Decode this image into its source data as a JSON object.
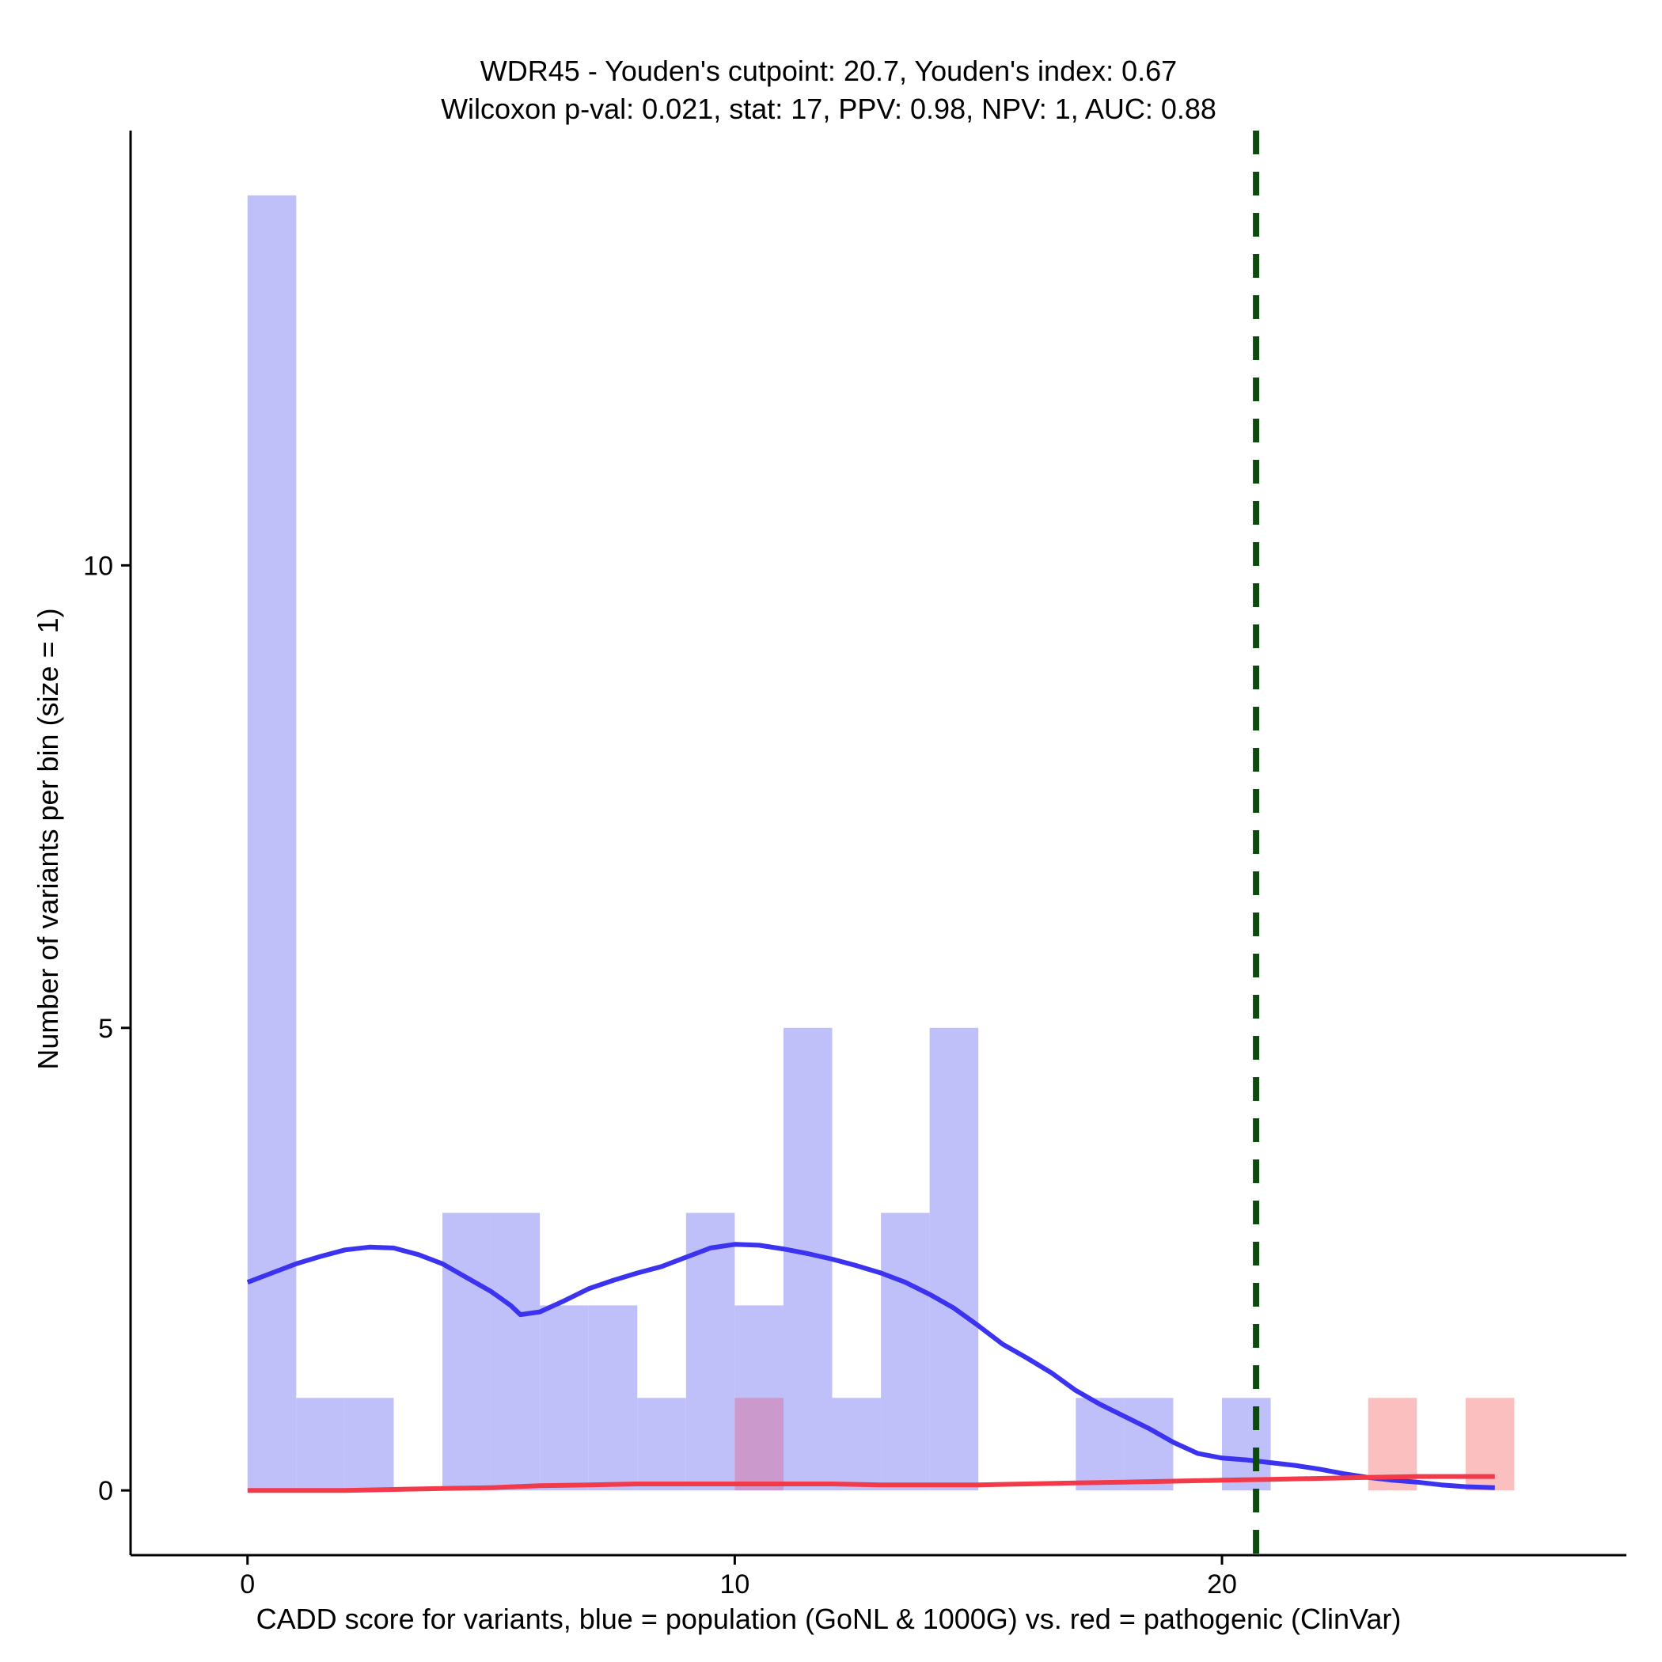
{
  "chart_data": {
    "type": "bar",
    "title_lines": [
      "WDR45 - Youden's cutpoint: 20.7, Youden's index: 0.67",
      "Wilcoxon p-val: 0.021, stat: 17, PPV: 0.98, NPV: 1, AUC: 0.88"
    ],
    "xlabel": "CADD score for variants, blue = population (GoNL & 1000G) vs. red = pathogenic (ClinVar)",
    "ylabel": "Number of variants per bin (size = 1)",
    "xlim": [
      -2.4,
      28.3
    ],
    "ylim": [
      -0.7,
      14.7
    ],
    "xticks": [
      0,
      10,
      20
    ],
    "yticks": [
      0,
      5,
      10
    ],
    "bin_width": 1,
    "cutpoint": 20.7,
    "colors": {
      "population_bar": "#bfbffa",
      "pathogenic_bar": "#fcbfbf",
      "overlap_bar": "#cc99cc",
      "population_line": "#3b33ef",
      "pathogenic_line": "#f23a4a",
      "cutpoint_line": "#0d4a0d"
    },
    "series": [
      {
        "name": "population (GoNL & 1000G)",
        "bins": [
          {
            "x": 0,
            "count": 14
          },
          {
            "x": 1,
            "count": 1
          },
          {
            "x": 2,
            "count": 1
          },
          {
            "x": 4,
            "count": 3
          },
          {
            "x": 5,
            "count": 3
          },
          {
            "x": 6,
            "count": 2
          },
          {
            "x": 7,
            "count": 2
          },
          {
            "x": 8,
            "count": 1
          },
          {
            "x": 9,
            "count": 3
          },
          {
            "x": 10,
            "count": 2
          },
          {
            "x": 11,
            "count": 5
          },
          {
            "x": 12,
            "count": 1
          },
          {
            "x": 13,
            "count": 3
          },
          {
            "x": 14,
            "count": 5
          },
          {
            "x": 17,
            "count": 1
          },
          {
            "x": 18,
            "count": 1
          },
          {
            "x": 20,
            "count": 1
          }
        ],
        "density": [
          [
            0,
            2.25
          ],
          [
            0.5,
            2.35
          ],
          [
            1,
            2.45
          ],
          [
            1.5,
            2.53
          ],
          [
            2,
            2.6
          ],
          [
            2.5,
            2.63
          ],
          [
            3,
            2.62
          ],
          [
            3.5,
            2.55
          ],
          [
            4,
            2.45
          ],
          [
            4.5,
            2.3
          ],
          [
            5,
            2.15
          ],
          [
            5.4,
            2.0
          ],
          [
            5.6,
            1.9
          ],
          [
            6,
            1.93
          ],
          [
            6.5,
            2.05
          ],
          [
            7,
            2.18
          ],
          [
            7.5,
            2.27
          ],
          [
            8,
            2.35
          ],
          [
            8.5,
            2.42
          ],
          [
            9,
            2.52
          ],
          [
            9.5,
            2.62
          ],
          [
            10,
            2.66
          ],
          [
            10.5,
            2.65
          ],
          [
            11,
            2.61
          ],
          [
            11.5,
            2.56
          ],
          [
            12,
            2.5
          ],
          [
            12.5,
            2.43
          ],
          [
            13,
            2.35
          ],
          [
            13.5,
            2.25
          ],
          [
            14,
            2.12
          ],
          [
            14.5,
            1.97
          ],
          [
            15,
            1.78
          ],
          [
            15.5,
            1.58
          ],
          [
            16,
            1.43
          ],
          [
            16.5,
            1.27
          ],
          [
            17,
            1.08
          ],
          [
            17.5,
            0.93
          ],
          [
            18,
            0.8
          ],
          [
            18.5,
            0.67
          ],
          [
            19,
            0.52
          ],
          [
            19.5,
            0.4
          ],
          [
            20,
            0.35
          ],
          [
            20.5,
            0.33
          ],
          [
            21,
            0.3
          ],
          [
            21.5,
            0.27
          ],
          [
            22,
            0.23
          ],
          [
            22.5,
            0.18
          ],
          [
            23,
            0.14
          ],
          [
            23.5,
            0.11
          ],
          [
            24,
            0.09
          ],
          [
            24.5,
            0.06
          ],
          [
            25,
            0.04
          ],
          [
            25.6,
            0.03
          ]
        ]
      },
      {
        "name": "pathogenic (ClinVar)",
        "bins": [
          {
            "x": 10,
            "count": 1
          },
          {
            "x": 23,
            "count": 1
          },
          {
            "x": 25,
            "count": 1
          }
        ],
        "density": [
          [
            0,
            0.0
          ],
          [
            1,
            0.0
          ],
          [
            2,
            0.0
          ],
          [
            3,
            0.01
          ],
          [
            4,
            0.02
          ],
          [
            5,
            0.03
          ],
          [
            6,
            0.05
          ],
          [
            7,
            0.06
          ],
          [
            8,
            0.07
          ],
          [
            9,
            0.07
          ],
          [
            10,
            0.07
          ],
          [
            11,
            0.07
          ],
          [
            12,
            0.07
          ],
          [
            13,
            0.06
          ],
          [
            14,
            0.06
          ],
          [
            15,
            0.06
          ],
          [
            16,
            0.07
          ],
          [
            17,
            0.08
          ],
          [
            18,
            0.09
          ],
          [
            19,
            0.1
          ],
          [
            20,
            0.11
          ],
          [
            21,
            0.12
          ],
          [
            22,
            0.13
          ],
          [
            23,
            0.14
          ],
          [
            24,
            0.15
          ],
          [
            25,
            0.15
          ],
          [
            25.6,
            0.15
          ]
        ]
      }
    ]
  }
}
